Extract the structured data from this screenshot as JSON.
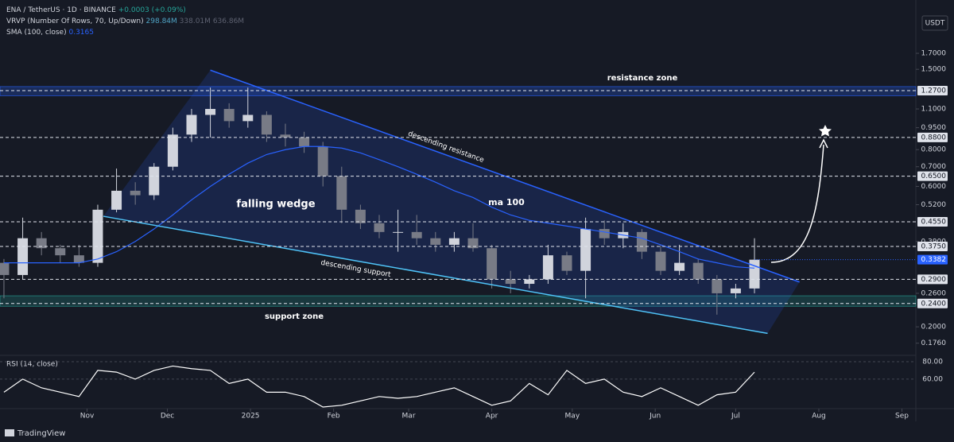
{
  "chart_data": [
    {
      "type": "candlestick",
      "title": "ENA / TetherUS · 1D · BINANCE",
      "change": "+0.0003 (+0.09%)",
      "vrvp": {
        "name": "VRVP (Number Of Rows, 70, Up/Down)",
        "values": [
          "298.84M",
          "338.01M",
          "636.86M"
        ]
      },
      "unit": "USDT",
      "categories": [
        null,
        null,
        null,
        null,
        null,
        null,
        null,
        null,
        null,
        null,
        null,
        null,
        null,
        null,
        null,
        null,
        null,
        null,
        null,
        null,
        null,
        null,
        null,
        null,
        null,
        null,
        null,
        null,
        null,
        null,
        null,
        null,
        null,
        null,
        null,
        null,
        null,
        null,
        null,
        null,
        null
      ],
      "open": [
        0.33,
        0.3,
        0.4,
        0.37,
        0.35,
        0.33,
        0.5,
        0.58,
        0.56,
        0.7,
        0.9,
        1.05,
        1.1,
        1.0,
        1.05,
        0.9,
        0.88,
        0.82,
        0.65,
        0.5,
        0.45,
        0.42,
        0.42,
        0.4,
        0.38,
        0.4,
        0.37,
        0.29,
        0.28,
        0.29,
        0.35,
        0.31,
        0.43,
        0.4,
        0.42,
        0.36,
        0.31,
        0.33,
        0.29,
        0.26,
        0.27
      ],
      "high": [
        0.34,
        0.47,
        0.42,
        0.38,
        0.38,
        0.52,
        0.69,
        0.62,
        0.72,
        0.95,
        1.1,
        1.3,
        1.15,
        1.3,
        1.08,
        0.98,
        0.92,
        0.85,
        0.7,
        0.52,
        0.48,
        0.5,
        0.48,
        0.42,
        0.42,
        0.45,
        0.38,
        0.31,
        0.3,
        0.38,
        0.36,
        0.47,
        0.46,
        0.45,
        0.43,
        0.38,
        0.38,
        0.34,
        0.3,
        0.28,
        0.4
      ],
      "low": [
        0.25,
        0.29,
        0.35,
        0.33,
        0.32,
        0.32,
        0.49,
        0.52,
        0.54,
        0.68,
        0.85,
        0.88,
        0.95,
        0.95,
        0.85,
        0.82,
        0.78,
        0.6,
        0.45,
        0.43,
        0.4,
        0.36,
        0.38,
        0.36,
        0.36,
        0.36,
        0.27,
        0.26,
        0.27,
        0.28,
        0.3,
        0.25,
        0.38,
        0.37,
        0.34,
        0.3,
        0.3,
        0.28,
        0.22,
        0.25,
        0.26
      ],
      "close": [
        0.3,
        0.4,
        0.37,
        0.35,
        0.33,
        0.5,
        0.58,
        0.56,
        0.7,
        0.9,
        1.05,
        1.1,
        1.0,
        1.05,
        0.9,
        0.88,
        0.82,
        0.65,
        0.5,
        0.45,
        0.42,
        0.42,
        0.4,
        0.38,
        0.4,
        0.37,
        0.29,
        0.28,
        0.29,
        0.35,
        0.31,
        0.43,
        0.4,
        0.42,
        0.36,
        0.31,
        0.33,
        0.29,
        0.26,
        0.27,
        0.3382
      ],
      "up_color": "#d1d4dc",
      "down_color": "#787b86",
      "sma": {
        "name": "SMA (100, close)",
        "color": "#2962ff",
        "values": [
          0.33,
          0.33,
          0.33,
          0.33,
          0.33,
          0.34,
          0.36,
          0.39,
          0.43,
          0.48,
          0.54,
          0.6,
          0.66,
          0.72,
          0.77,
          0.8,
          0.82,
          0.82,
          0.81,
          0.78,
          0.74,
          0.7,
          0.66,
          0.62,
          0.58,
          0.55,
          0.51,
          0.48,
          0.46,
          0.45,
          0.44,
          0.43,
          0.42,
          0.41,
          0.4,
          0.38,
          0.36,
          0.34,
          0.33,
          0.32,
          0.3165
        ]
      },
      "trendlines": [
        {
          "name": "descending resistance",
          "color": "#2962ff",
          "x": [
            11.0,
            42.4
          ],
          "y": [
            1.49,
            0.284
          ]
        },
        {
          "name": "descending support",
          "color": "#4fc3f7",
          "x": [
            5.3,
            40.7
          ],
          "y": [
            0.475,
            0.19
          ]
        }
      ],
      "zones": [
        {
          "name": "resistance zone",
          "range": [
            1.22,
            1.31
          ]
        },
        {
          "name": "support zone",
          "range": [
            0.235,
            0.255
          ]
        }
      ],
      "annotations": [
        "falling wedge",
        "ma 100"
      ],
      "levels": [
        {
          "value": 1.27,
          "label": "1.2700"
        },
        {
          "value": 0.88,
          "label": "0.8800"
        },
        {
          "value": 0.65,
          "label": "0.6500"
        },
        {
          "value": 0.455,
          "label": "0.4550"
        },
        {
          "value": 0.375,
          "label": "0.3750"
        },
        {
          "value": 0.29,
          "label": "0.2900"
        },
        {
          "value": 0.24,
          "label": "0.2400"
        }
      ],
      "log_scale": true,
      "xlim": [
        -0.21,
        48.6
      ],
      "ylim": [
        0.162,
        2.35
      ],
      "yticks": [
        {
          "value": 1.7,
          "label": "1.7000"
        },
        {
          "value": 1.5,
          "label": "1.5000"
        },
        {
          "value": 1.1,
          "label": "1.1000"
        },
        {
          "value": 0.95,
          "label": "0.9500"
        },
        {
          "value": 0.8,
          "label": "0.8000"
        },
        {
          "value": 0.7,
          "label": "0.7000"
        },
        {
          "value": 0.6,
          "label": "0.6000"
        },
        {
          "value": 0.52,
          "label": "0.5200"
        },
        {
          "value": 0.39,
          "label": "0.3900"
        },
        {
          "value": 0.26,
          "label": "0.2600"
        },
        {
          "value": 0.2,
          "label": "0.2000"
        },
        {
          "value": 0.176,
          "label": "0.1760"
        }
      ],
      "xticks": [
        {
          "value": 4.43,
          "label": "Nov"
        },
        {
          "value": 8.71,
          "label": "Dec"
        },
        {
          "value": 13.14,
          "label": "2025"
        },
        {
          "value": 17.57,
          "label": "Feb"
        },
        {
          "value": 21.57,
          "label": "Mar"
        },
        {
          "value": 26.0,
          "label": "Apr"
        },
        {
          "value": 30.29,
          "label": "May"
        },
        {
          "value": 34.71,
          "label": "Jun"
        },
        {
          "value": 39.0,
          "label": "Jul"
        },
        {
          "value": 43.43,
          "label": "Aug"
        },
        {
          "value": 47.86,
          "label": "Sep"
        }
      ]
    },
    {
      "type": "line",
      "title": "RSI (14, close)",
      "color": "#ffffff",
      "values": [
        45,
        60,
        50,
        45,
        40,
        70,
        68,
        60,
        70,
        75,
        72,
        70,
        55,
        60,
        45,
        45,
        40,
        28,
        30,
        35,
        40,
        38,
        40,
        45,
        50,
        40,
        30,
        35,
        55,
        42,
        70,
        55,
        60,
        45,
        40,
        50,
        40,
        30,
        42,
        45,
        68
      ],
      "ylim": [
        28,
        84.5
      ],
      "yticks": [
        {
          "value": 80,
          "label": "80.00"
        },
        {
          "value": 60,
          "label": "60.00"
        }
      ]
    }
  ],
  "footer": {
    "brand": "TradingView"
  }
}
